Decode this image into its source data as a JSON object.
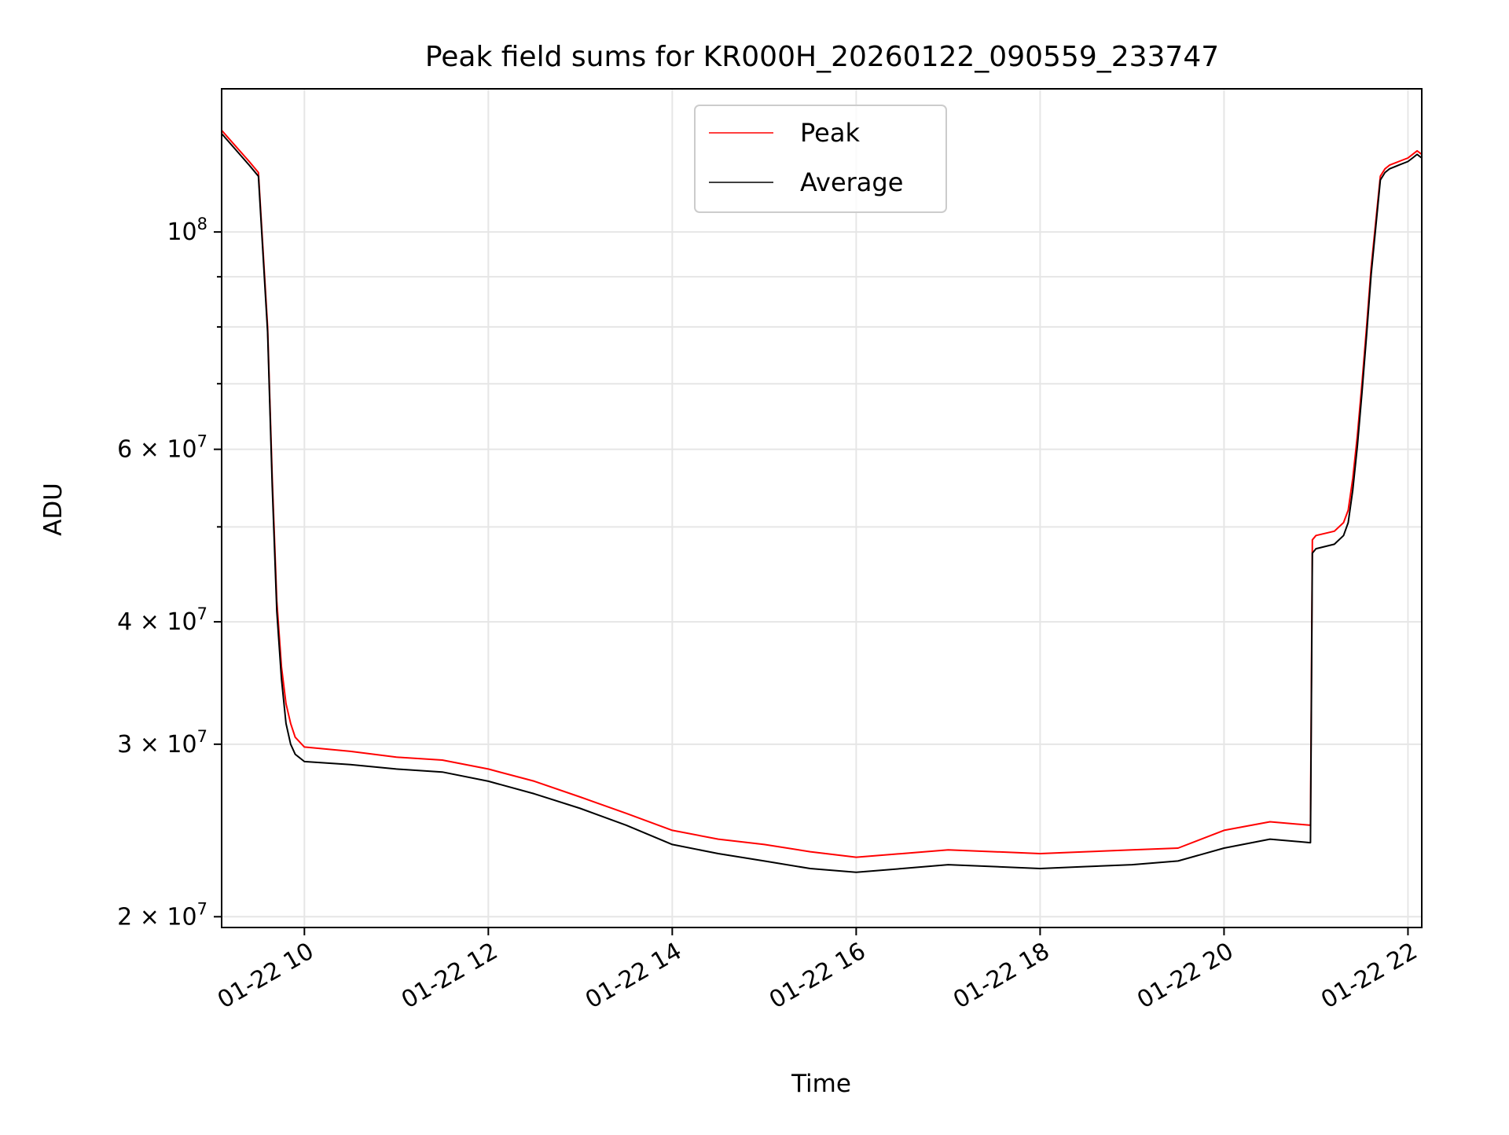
{
  "chart_data": {
    "type": "line",
    "title": "Peak field sums for KR000H_20260122_090559_233747",
    "xlabel": "Time",
    "ylabel": "ADU",
    "yscale": "log",
    "xlim_hours": [
      9.1,
      22.15
    ],
    "ylim": [
      19500000,
      140000000
    ],
    "grid": true,
    "legend_position": "upper center",
    "x_ticks": [
      {
        "hour": 10,
        "label": "01-22 10"
      },
      {
        "hour": 12,
        "label": "01-22 12"
      },
      {
        "hour": 14,
        "label": "01-22 14"
      },
      {
        "hour": 16,
        "label": "01-22 16"
      },
      {
        "hour": 18,
        "label": "01-22 18"
      },
      {
        "hour": 20,
        "label": "01-22 20"
      },
      {
        "hour": 22,
        "label": "01-22 22"
      }
    ],
    "y_major_ticks": [
      {
        "value": 20000000,
        "mant": "2 × 10",
        "exp": "7"
      },
      {
        "value": 30000000,
        "mant": "3 × 10",
        "exp": "7"
      },
      {
        "value": 40000000,
        "mant": "4 × 10",
        "exp": "7"
      },
      {
        "value": 60000000,
        "mant": "6 × 10",
        "exp": "7"
      },
      {
        "value": 100000000,
        "mant": "10",
        "exp": "8"
      }
    ],
    "y_minor_ticks": [
      50000000,
      70000000,
      80000000,
      90000000
    ],
    "series": [
      {
        "name": "Peak",
        "color": "#ff0000",
        "x_hours": [
          9.1,
          9.4,
          9.5,
          9.6,
          9.65,
          9.7,
          9.75,
          9.8,
          9.85,
          9.9,
          10.0,
          10.5,
          11.0,
          11.5,
          12.0,
          12.5,
          13.0,
          13.5,
          14.0,
          14.5,
          15.0,
          15.5,
          16.0,
          16.5,
          17.0,
          17.5,
          18.0,
          18.5,
          19.0,
          19.5,
          20.0,
          20.5,
          20.94,
          20.96,
          21.0,
          21.2,
          21.3,
          21.35,
          21.4,
          21.45,
          21.5,
          21.55,
          21.6,
          21.7,
          21.75,
          21.8,
          21.9,
          22.0,
          22.05,
          22.1,
          22.15
        ],
        "values": [
          127000000,
          118000000,
          115000000,
          80000000,
          56000000,
          42000000,
          36000000,
          33000000,
          31500000,
          30500000,
          29800000,
          29500000,
          29100000,
          28900000,
          28300000,
          27500000,
          26500000,
          25500000,
          24500000,
          24000000,
          23700000,
          23300000,
          23000000,
          23200000,
          23400000,
          23300000,
          23200000,
          23300000,
          23400000,
          23500000,
          24500000,
          25000000,
          24800000,
          48500000,
          49000000,
          49500000,
          50500000,
          52000000,
          56000000,
          62000000,
          70000000,
          80000000,
          92000000,
          114000000,
          116000000,
          117000000,
          118000000,
          119000000,
          120000000,
          121000000,
          120000000
        ]
      },
      {
        "name": "Average",
        "color": "#000000",
        "x_hours": [
          9.1,
          9.4,
          9.5,
          9.6,
          9.65,
          9.7,
          9.75,
          9.8,
          9.85,
          9.9,
          10.0,
          10.5,
          11.0,
          11.5,
          12.0,
          12.5,
          13.0,
          13.5,
          14.0,
          14.5,
          15.0,
          15.5,
          16.0,
          16.5,
          17.0,
          17.5,
          18.0,
          18.5,
          19.0,
          19.5,
          20.0,
          20.5,
          20.94,
          20.96,
          21.0,
          21.2,
          21.3,
          21.35,
          21.4,
          21.45,
          21.5,
          21.55,
          21.6,
          21.7,
          21.75,
          21.8,
          21.9,
          22.0,
          22.05,
          22.1,
          22.15
        ],
        "values": [
          126000000,
          117000000,
          114000000,
          79000000,
          55000000,
          41000000,
          35000000,
          31500000,
          30000000,
          29300000,
          28800000,
          28600000,
          28300000,
          28100000,
          27500000,
          26700000,
          25800000,
          24800000,
          23700000,
          23200000,
          22800000,
          22400000,
          22200000,
          22400000,
          22600000,
          22500000,
          22400000,
          22500000,
          22600000,
          22800000,
          23500000,
          24000000,
          23800000,
          47000000,
          47500000,
          48000000,
          49000000,
          50500000,
          54500000,
          60500000,
          68500000,
          78500000,
          90500000,
          113000000,
          115000000,
          116000000,
          117000000,
          118000000,
          119000000,
          120000000,
          119000000
        ]
      }
    ]
  }
}
